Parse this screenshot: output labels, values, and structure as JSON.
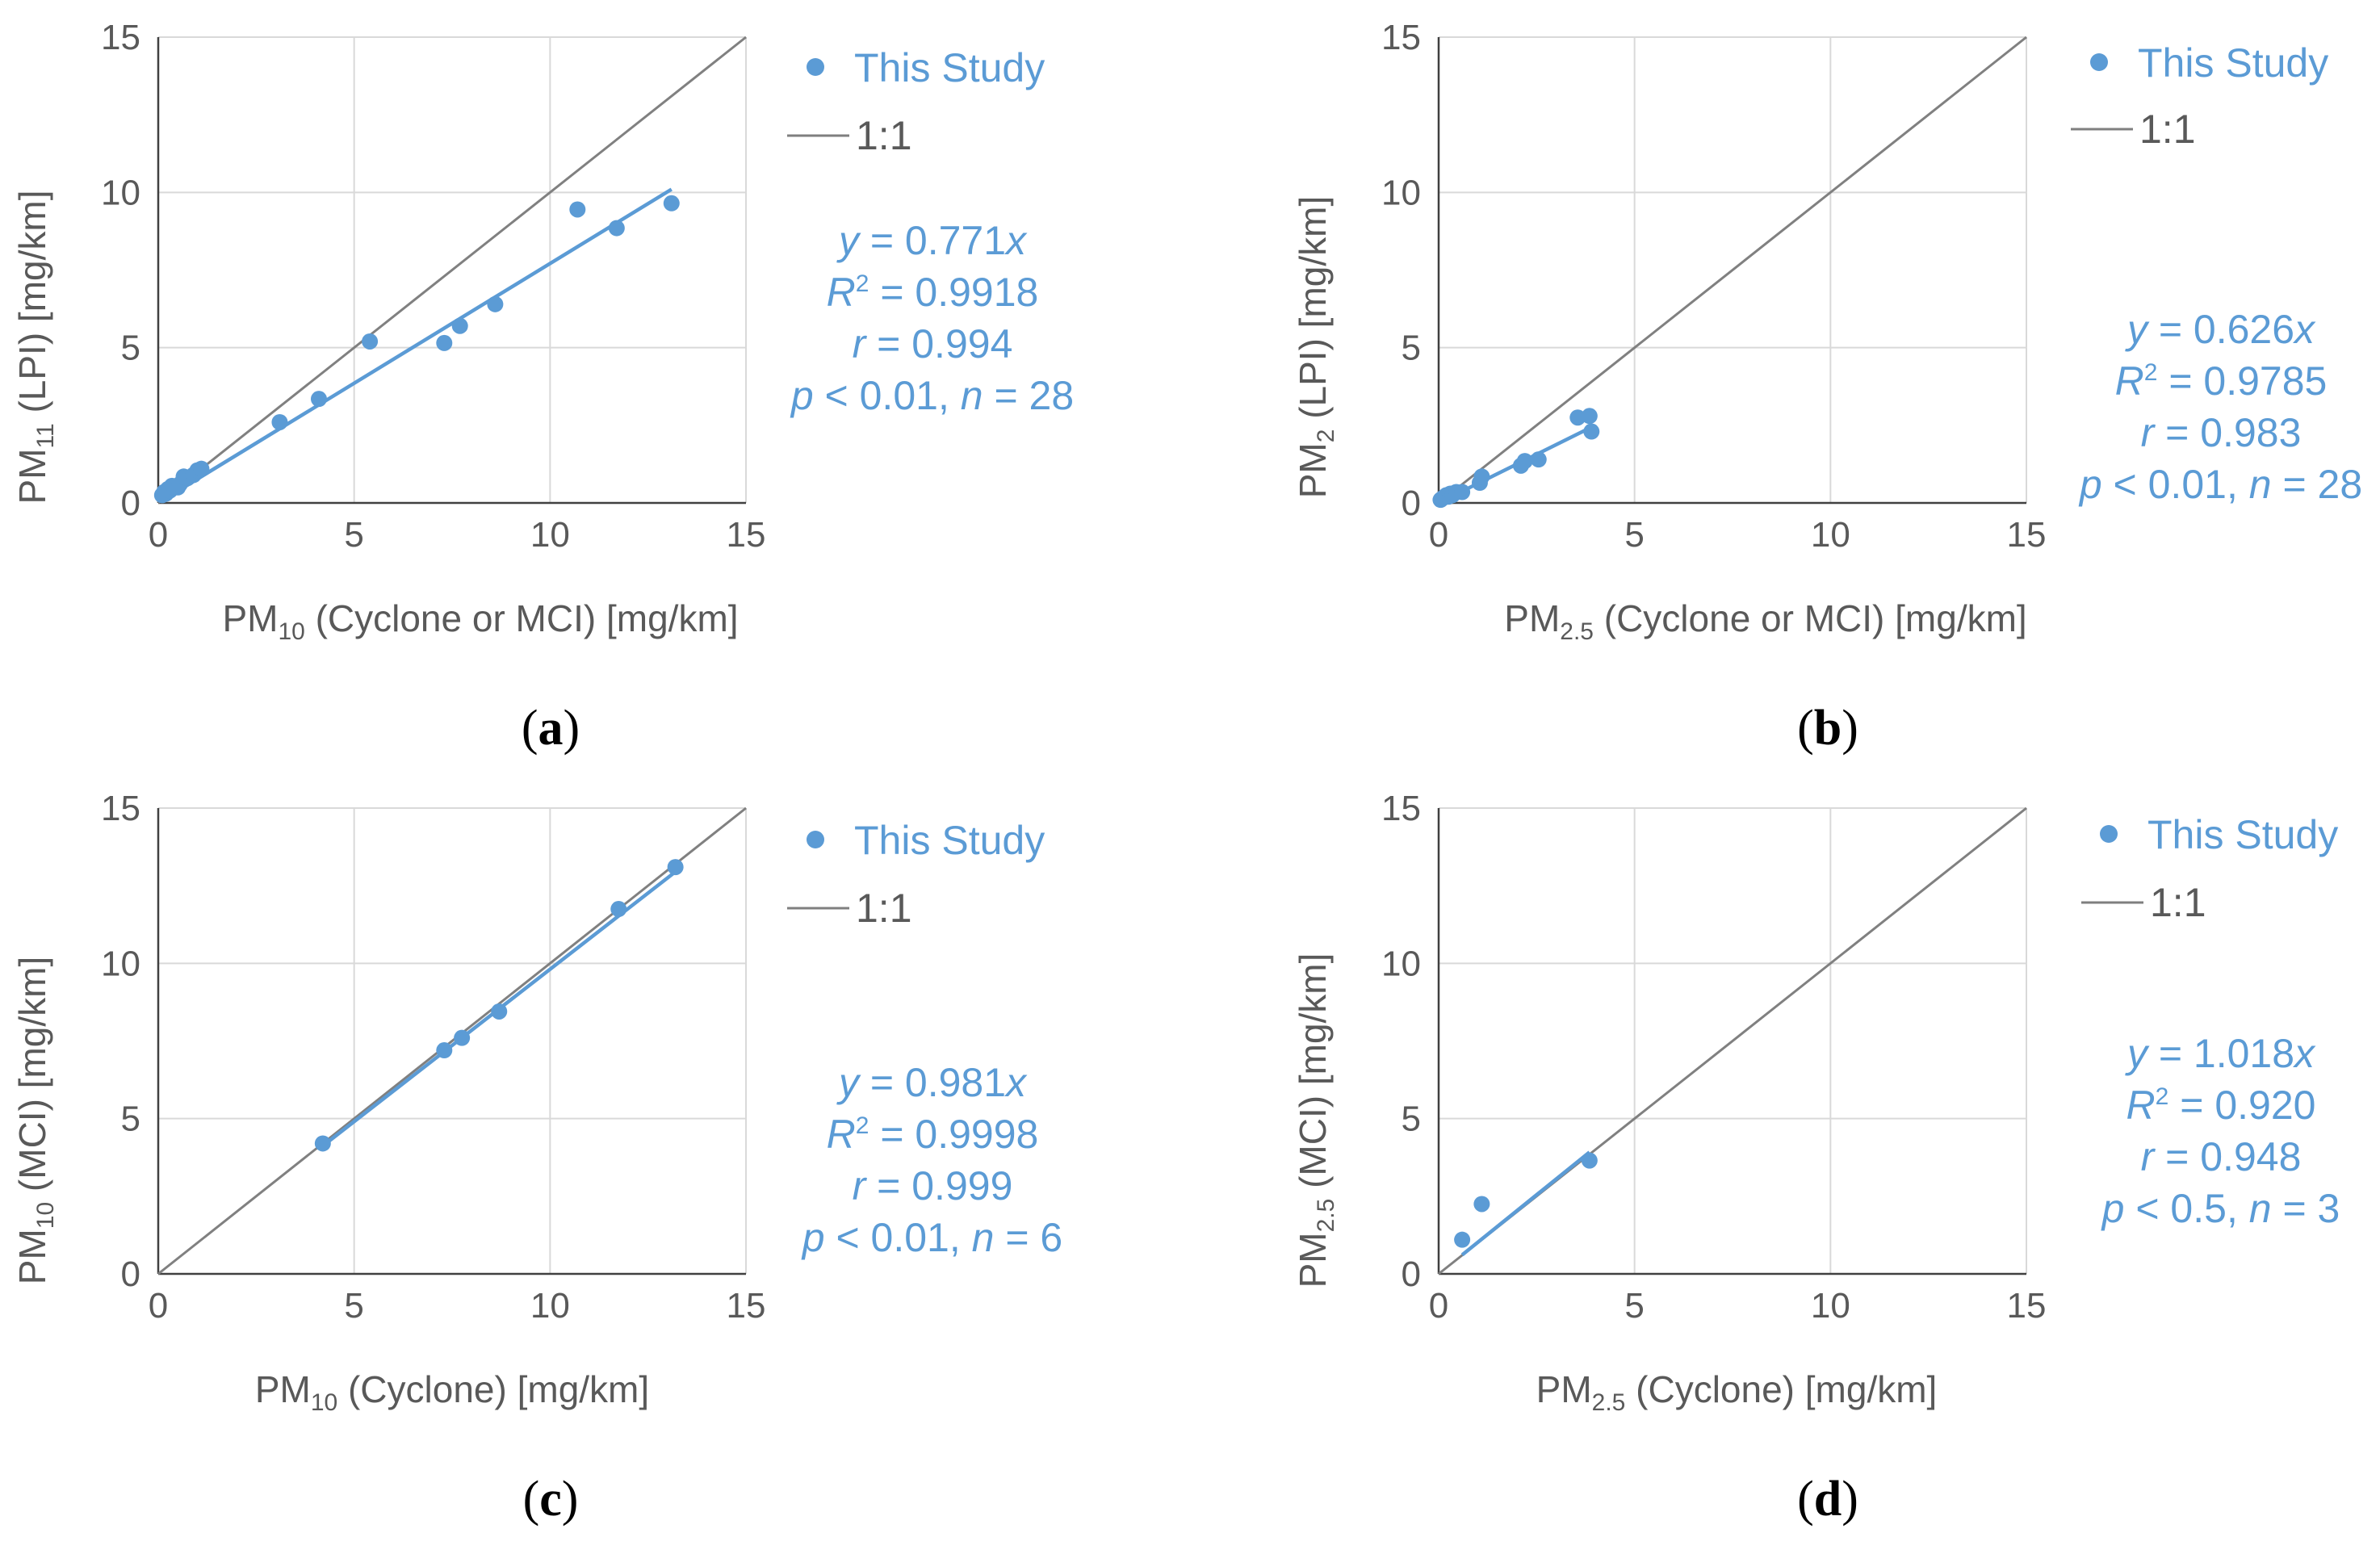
{
  "figure": {
    "panels": [
      {
        "label": "a",
        "legend": {
          "series": "This Study",
          "reference": "1:1"
        },
        "stats": {
          "eq_y": "y",
          "eq_coef": " = 0.771",
          "eq_x": "x",
          "r2_sym": "R",
          "r2_sup": "2",
          "r2_val": " = 0.9918",
          "r_sym": "r",
          "r_val": " = 0.994",
          "p_sym": "p",
          "p_val": " < 0.01, ",
          "n_sym": "n",
          "n_val": " = 28"
        },
        "xlabel": {
          "main": "PM",
          "sub": "10",
          "rest": " (Cyclone or MCI) [mg/km]"
        },
        "ylabel": {
          "main": "PM",
          "sub": "11",
          "rest": " (LPI) [mg/km]"
        }
      },
      {
        "label": "b",
        "legend": {
          "series": "This Study",
          "reference": "1:1"
        },
        "stats": {
          "eq_y": "y",
          "eq_coef": " = 0.626",
          "eq_x": "x",
          "r2_sym": "R",
          "r2_sup": "2",
          "r2_val": " = 0.9785",
          "r_sym": "r",
          "r_val": " = 0.983",
          "p_sym": "p",
          "p_val": " < 0.01, ",
          "n_sym": "n",
          "n_val": " = 28"
        },
        "xlabel": {
          "main": "PM",
          "sub": "2.5",
          "rest": " (Cyclone or MCI) [mg/km]"
        },
        "ylabel": {
          "main": "PM",
          "sub": "2",
          "rest": " (LPI) [mg/km]"
        }
      },
      {
        "label": "c",
        "legend": {
          "series": "This Study",
          "reference": "1:1"
        },
        "stats": {
          "eq_y": "y",
          "eq_coef": " = 0.981",
          "eq_x": "x",
          "r2_sym": "R",
          "r2_sup": "2",
          "r2_val": " = 0.9998",
          "r_sym": "r",
          "r_val": " = 0.999",
          "p_sym": "p",
          "p_val": " < 0.01, ",
          "n_sym": "n",
          "n_val": " = 6"
        },
        "xlabel": {
          "main": "PM",
          "sub": "10",
          "rest": " (Cyclone) [mg/km]"
        },
        "ylabel": {
          "main": "PM",
          "sub": "10",
          "rest": " (MCI) [mg/km]"
        }
      },
      {
        "label": "d",
        "legend": {
          "series": "This Study",
          "reference": "1:1"
        },
        "stats": {
          "eq_y": "y",
          "eq_coef": " = 1.018",
          "eq_x": "x",
          "r2_sym": "R",
          "r2_sup": "2",
          "r2_val": " = 0.920",
          "r_sym": "r",
          "r_val": " = 0.948",
          "p_sym": "p",
          "p_val": " < 0.5, ",
          "n_sym": "n",
          "n_val": " = 3"
        },
        "xlabel": {
          "main": "PM",
          "sub": "2.5",
          "rest": " (Cyclone) [mg/km]"
        },
        "ylabel": {
          "main": "PM",
          "sub": "2.5",
          "rest": " (MCI) [mg/km]"
        }
      }
    ]
  },
  "chart_data": [
    {
      "type": "scatter",
      "panel": "a",
      "xlabel": "PM10 (Cyclone or MCI) [mg/km]",
      "ylabel": "PM11 (LPI) [mg/km]",
      "xlim": [
        0,
        15
      ],
      "ylim": [
        0,
        15
      ],
      "ticks": [
        "0",
        "5",
        "10",
        "15"
      ],
      "grid": true,
      "legend_position": "top-right",
      "series": [
        {
          "name": "This Study",
          "points": [
            [
              0.1,
              0.25
            ],
            [
              0.15,
              0.35
            ],
            [
              0.2,
              0.3
            ],
            [
              0.25,
              0.45
            ],
            [
              0.3,
              0.4
            ],
            [
              0.35,
              0.55
            ],
            [
              0.4,
              0.5
            ],
            [
              0.5,
              0.5
            ],
            [
              0.55,
              0.6
            ],
            [
              0.65,
              0.85
            ],
            [
              0.75,
              0.8
            ],
            [
              0.9,
              0.9
            ],
            [
              1.0,
              1.05
            ],
            [
              1.1,
              1.1
            ],
            [
              3.1,
              2.6
            ],
            [
              4.1,
              3.35
            ],
            [
              5.4,
              5.2
            ],
            [
              7.3,
              5.15
            ],
            [
              7.7,
              5.7
            ],
            [
              8.6,
              6.4
            ],
            [
              10.7,
              9.45
            ],
            [
              11.7,
              8.85
            ],
            [
              13.1,
              9.65
            ]
          ]
        }
      ],
      "fit": {
        "slope": 0.771,
        "x_range": [
          0.1,
          13.1
        ]
      },
      "reference_line": {
        "slope": 1
      }
    },
    {
      "type": "scatter",
      "panel": "b",
      "xlabel": "PM2.5 (Cyclone or MCI) [mg/km]",
      "ylabel": "PM2 (LPI) [mg/km]",
      "xlim": [
        0,
        15
      ],
      "ylim": [
        0,
        15
      ],
      "ticks": [
        "0",
        "5",
        "10",
        "15"
      ],
      "grid": true,
      "legend_position": "top-right",
      "series": [
        {
          "name": "This Study",
          "points": [
            [
              0.05,
              0.1
            ],
            [
              0.1,
              0.15
            ],
            [
              0.15,
              0.2
            ],
            [
              0.2,
              0.25
            ],
            [
              0.25,
              0.2
            ],
            [
              0.3,
              0.3
            ],
            [
              0.35,
              0.25
            ],
            [
              0.45,
              0.35
            ],
            [
              0.6,
              0.35
            ],
            [
              1.05,
              0.65
            ],
            [
              1.1,
              0.85
            ],
            [
              2.1,
              1.2
            ],
            [
              2.2,
              1.35
            ],
            [
              2.55,
              1.4
            ],
            [
              3.55,
              2.75
            ],
            [
              3.85,
              2.8
            ],
            [
              3.9,
              2.3
            ]
          ]
        }
      ],
      "fit": {
        "slope": 0.626,
        "x_range": [
          0.05,
          3.9
        ]
      },
      "reference_line": {
        "slope": 1
      }
    },
    {
      "type": "scatter",
      "panel": "c",
      "xlabel": "PM10 (Cyclone) [mg/km]",
      "ylabel": "PM10 (MCI) [mg/km]",
      "xlim": [
        0,
        15
      ],
      "ylim": [
        0,
        15
      ],
      "ticks": [
        "0",
        "5",
        "10",
        "15"
      ],
      "grid": true,
      "legend_position": "top-right",
      "series": [
        {
          "name": "This Study",
          "points": [
            [
              4.2,
              4.2
            ],
            [
              7.3,
              7.2
            ],
            [
              7.75,
              7.6
            ],
            [
              8.7,
              8.45
            ],
            [
              11.75,
              11.75
            ],
            [
              13.2,
              13.1
            ]
          ]
        }
      ],
      "fit": {
        "slope": 0.981,
        "x_range": [
          4.2,
          13.2
        ]
      },
      "reference_line": {
        "slope": 1
      }
    },
    {
      "type": "scatter",
      "panel": "d",
      "xlabel": "PM2.5 (Cyclone) [mg/km]",
      "ylabel": "PM2.5 (MCI) [mg/km]",
      "xlim": [
        0,
        15
      ],
      "ylim": [
        0,
        15
      ],
      "ticks": [
        "0",
        "5",
        "10",
        "15"
      ],
      "grid": true,
      "legend_position": "top-right",
      "series": [
        {
          "name": "This Study",
          "points": [
            [
              0.6,
              1.1
            ],
            [
              1.1,
              2.25
            ],
            [
              3.85,
              3.65
            ]
          ]
        }
      ],
      "fit": {
        "slope": 1.018,
        "x_range": [
          0.6,
          3.85
        ]
      },
      "reference_line": {
        "slope": 1
      }
    }
  ]
}
